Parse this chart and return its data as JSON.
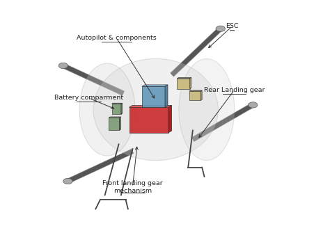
{
  "background_color": "#ffffff",
  "labels": {
    "autopilot": "Autopilot & components",
    "battery": "Battery comparment",
    "front_landing": "Front landing gear\nmechanism",
    "rear_landing": "Rear Landing gear",
    "esc": "ESC"
  },
  "fuselage_color": "#d0d0d0",
  "fuselage_alpha": 0.35,
  "box_red": "#cc3333",
  "box_blue": "#6699bb",
  "box_green": "#7a9970",
  "box_tan": "#c8b878",
  "arm_color": "#555555",
  "text_color": "#222222"
}
